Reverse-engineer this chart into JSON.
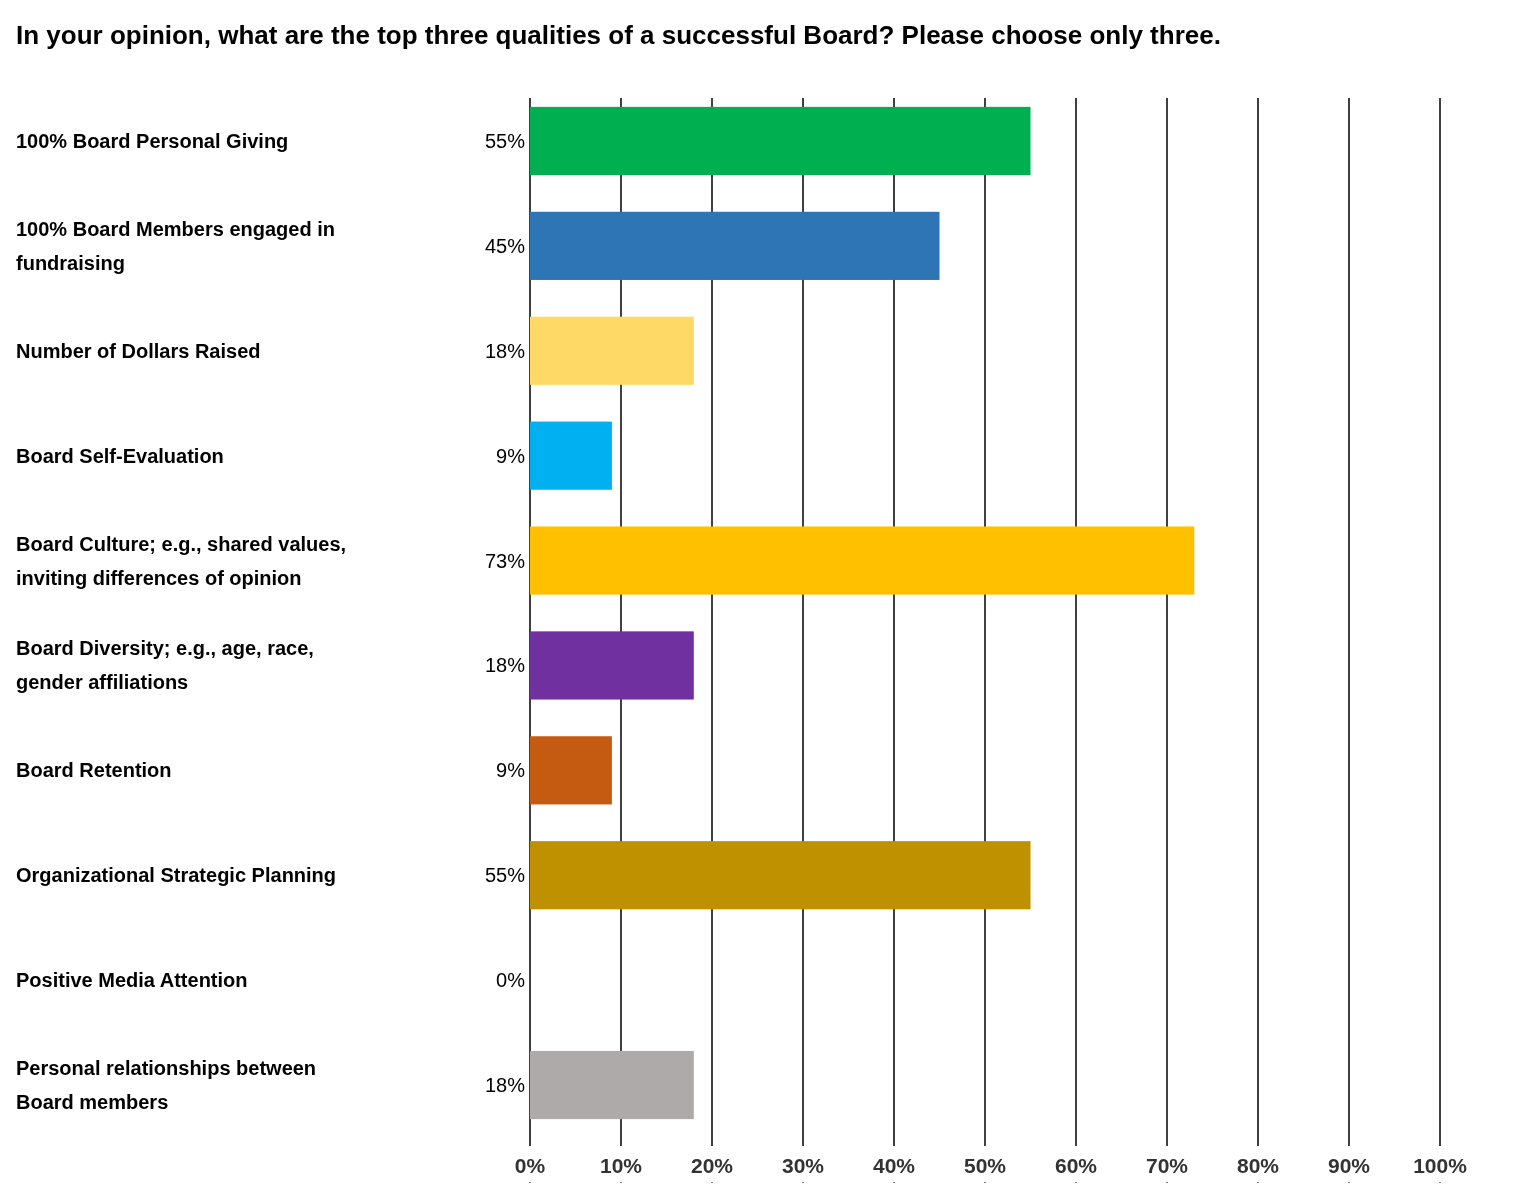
{
  "chart_data": {
    "type": "bar",
    "orientation": "horizontal",
    "title": "In your opinion, what are the top three qualities of a successful Board? Please choose only three.",
    "categories": [
      "100% Board Personal Giving",
      "100% Board Members engaged in fundraising",
      "Number of Dollars Raised",
      "Board Self-Evaluation",
      "Board Culture; e.g., shared values, inviting differences of opinion",
      "Board Diversity; e.g., age, race, gender affiliations",
      "Board Retention",
      "Organizational Strategic Planning",
      "Positive Media Attention",
      "Personal relationships between Board members"
    ],
    "values": [
      55,
      45,
      18,
      9,
      73,
      18,
      9,
      55,
      0,
      18
    ],
    "colors": [
      "#00b050",
      "#2e75b6",
      "#ffd966",
      "#00b0f0",
      "#ffc000",
      "#7030a0",
      "#c55a11",
      "#bf9000",
      "#a5a5a5",
      "#aeaaaa"
    ],
    "data_labels": true,
    "value_labels": [
      "55%",
      "45%",
      "18%",
      "9%",
      "73%",
      "18%",
      "9%",
      "55%",
      "0%",
      "18%"
    ],
    "xlim": [
      0,
      100
    ],
    "xticks": [
      {
        "value": 0,
        "label": "0%"
      },
      {
        "value": 10,
        "label": "10%"
      },
      {
        "value": 20,
        "label": "20%"
      },
      {
        "value": 30,
        "label": "30%"
      },
      {
        "value": 40,
        "label": "40%"
      },
      {
        "value": 50,
        "label": "50%"
      },
      {
        "value": 60,
        "label": "60%"
      },
      {
        "value": 70,
        "label": "70%"
      },
      {
        "value": 80,
        "label": "80%"
      },
      {
        "value": 90,
        "label": "90%"
      },
      {
        "value": 100,
        "label": "100%"
      }
    ],
    "grid": "x"
  }
}
